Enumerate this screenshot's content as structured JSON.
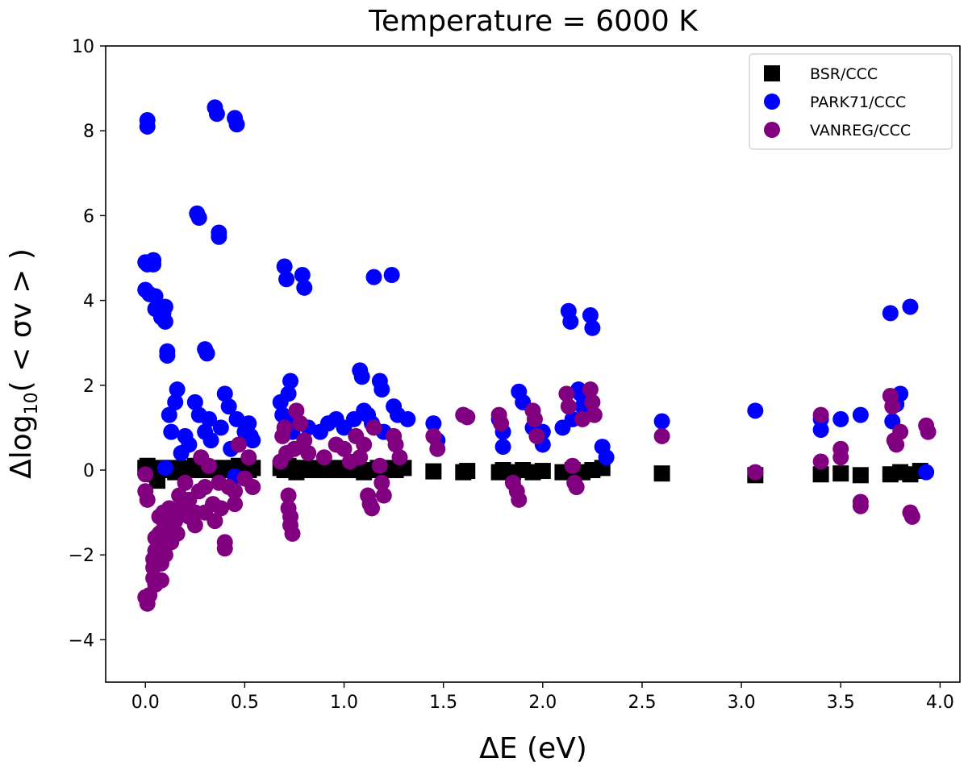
{
  "chart_data": {
    "type": "scatter",
    "title": "Temperature = 6000 K",
    "xlabel": "ΔE (eV)",
    "ylabel_prefix": "Δlog",
    "ylabel_sub": "10",
    "ylabel_suffix": "( < σv > )",
    "xlim": [
      -0.2,
      4.1
    ],
    "ylim": [
      -5,
      10
    ],
    "xticks": [
      0.0,
      0.5,
      1.0,
      1.5,
      2.0,
      2.5,
      3.0,
      3.5,
      4.0
    ],
    "xtick_labels": [
      "0.0",
      "0.5",
      "1.0",
      "1.5",
      "2.0",
      "2.5",
      "3.0",
      "3.5",
      "4.0"
    ],
    "yticks": [
      -4,
      -2,
      0,
      2,
      4,
      6,
      8,
      10
    ],
    "ytick_labels": [
      "−4",
      "−2",
      "0",
      "2",
      "4",
      "6",
      "8",
      "10"
    ],
    "legend_position": "top-right",
    "series": [
      {
        "name": "BSR/CCC",
        "marker": "square",
        "color": "#000000",
        "points": [
          [
            0.0,
            0.05
          ],
          [
            0.01,
            0.1
          ],
          [
            0.02,
            -0.05
          ],
          [
            0.03,
            0.0
          ],
          [
            0.05,
            -0.1
          ],
          [
            0.06,
            -0.25
          ],
          [
            0.08,
            0.05
          ],
          [
            0.1,
            0.0
          ],
          [
            0.12,
            0.05
          ],
          [
            0.15,
            -0.05
          ],
          [
            0.18,
            0.0
          ],
          [
            0.2,
            0.05
          ],
          [
            0.22,
            0.0
          ],
          [
            0.25,
            0.1
          ],
          [
            0.27,
            0.0
          ],
          [
            0.3,
            0.05
          ],
          [
            0.32,
            0.0
          ],
          [
            0.35,
            0.05
          ],
          [
            0.37,
            0.0
          ],
          [
            0.4,
            0.05
          ],
          [
            0.42,
            0.0
          ],
          [
            0.45,
            0.05
          ],
          [
            0.47,
            0.1
          ],
          [
            0.5,
            0.05
          ],
          [
            0.52,
            0.0
          ],
          [
            0.54,
            0.05
          ],
          [
            0.68,
            0.05
          ],
          [
            0.7,
            0.0
          ],
          [
            0.72,
            0.1
          ],
          [
            0.74,
            0.05
          ],
          [
            0.76,
            -0.05
          ],
          [
            0.78,
            0.0
          ],
          [
            0.8,
            0.05
          ],
          [
            0.85,
            0.0
          ],
          [
            0.88,
            0.05
          ],
          [
            0.92,
            0.0
          ],
          [
            0.96,
            0.05
          ],
          [
            1.0,
            0.0
          ],
          [
            1.04,
            0.05
          ],
          [
            1.07,
            0.0
          ],
          [
            1.1,
            -0.05
          ],
          [
            1.14,
            0.0
          ],
          [
            1.17,
            0.05
          ],
          [
            1.2,
            0.0
          ],
          [
            1.23,
            0.05
          ],
          [
            1.26,
            0.0
          ],
          [
            1.3,
            0.05
          ],
          [
            1.45,
            -0.03
          ],
          [
            1.6,
            -0.05
          ],
          [
            1.62,
            -0.02
          ],
          [
            1.78,
            -0.05
          ],
          [
            1.8,
            0.0
          ],
          [
            1.85,
            -0.05
          ],
          [
            1.9,
            0.0
          ],
          [
            1.95,
            -0.05
          ],
          [
            2.0,
            -0.02
          ],
          [
            2.1,
            -0.05
          ],
          [
            2.15,
            0.0
          ],
          [
            2.2,
            -0.05
          ],
          [
            2.25,
            0.0
          ],
          [
            2.3,
            0.05
          ],
          [
            2.6,
            -0.08
          ],
          [
            3.07,
            -0.12
          ],
          [
            3.4,
            -0.1
          ],
          [
            3.5,
            -0.08
          ],
          [
            3.6,
            -0.12
          ],
          [
            3.75,
            -0.1
          ],
          [
            3.8,
            -0.05
          ],
          [
            3.85,
            -0.1
          ],
          [
            3.9,
            -0.02
          ]
        ]
      },
      {
        "name": "PARK71/CCC",
        "marker": "circle",
        "color": "#0000ff",
        "points": [
          [
            0.01,
            8.25
          ],
          [
            0.01,
            8.1
          ],
          [
            0.0,
            4.9
          ],
          [
            0.01,
            4.85
          ],
          [
            0.0,
            4.25
          ],
          [
            0.02,
            4.15
          ],
          [
            0.04,
            4.95
          ],
          [
            0.04,
            4.85
          ],
          [
            0.05,
            4.1
          ],
          [
            0.05,
            3.8
          ],
          [
            0.08,
            3.6
          ],
          [
            0.09,
            3.7
          ],
          [
            0.1,
            3.85
          ],
          [
            0.1,
            3.5
          ],
          [
            0.11,
            2.8
          ],
          [
            0.11,
            2.7
          ],
          [
            0.12,
            1.3
          ],
          [
            0.13,
            0.9
          ],
          [
            0.15,
            1.6
          ],
          [
            0.16,
            1.9
          ],
          [
            0.18,
            0.4
          ],
          [
            0.2,
            0.8
          ],
          [
            0.22,
            0.6
          ],
          [
            0.25,
            1.6
          ],
          [
            0.27,
            1.3
          ],
          [
            0.26,
            6.05
          ],
          [
            0.27,
            5.95
          ],
          [
            0.3,
            2.85
          ],
          [
            0.31,
            2.75
          ],
          [
            0.3,
            0.9
          ],
          [
            0.33,
            0.7
          ],
          [
            0.32,
            1.2
          ],
          [
            0.35,
            8.55
          ],
          [
            0.36,
            8.4
          ],
          [
            0.37,
            5.6
          ],
          [
            0.37,
            5.5
          ],
          [
            0.38,
            1.0
          ],
          [
            0.4,
            1.8
          ],
          [
            0.42,
            1.5
          ],
          [
            0.43,
            0.5
          ],
          [
            0.45,
            8.3
          ],
          [
            0.46,
            8.15
          ],
          [
            0.46,
            1.2
          ],
          [
            0.5,
            0.9
          ],
          [
            0.52,
            1.1
          ],
          [
            0.53,
            0.8
          ],
          [
            0.54,
            0.7
          ],
          [
            0.68,
            1.6
          ],
          [
            0.69,
            1.3
          ],
          [
            0.7,
            4.8
          ],
          [
            0.71,
            4.5
          ],
          [
            0.72,
            1.8
          ],
          [
            0.73,
            2.1
          ],
          [
            0.74,
            0.9
          ],
          [
            0.75,
            1.2
          ],
          [
            0.79,
            4.6
          ],
          [
            0.8,
            4.3
          ],
          [
            0.82,
            1.0
          ],
          [
            0.88,
            0.9
          ],
          [
            0.92,
            1.1
          ],
          [
            0.96,
            1.2
          ],
          [
            1.0,
            1.0
          ],
          [
            1.05,
            1.2
          ],
          [
            1.08,
            2.35
          ],
          [
            1.09,
            2.2
          ],
          [
            1.1,
            1.4
          ],
          [
            1.12,
            1.3
          ],
          [
            1.14,
            1.1
          ],
          [
            1.15,
            4.55
          ],
          [
            1.18,
            2.1
          ],
          [
            1.19,
            1.9
          ],
          [
            1.2,
            0.9
          ],
          [
            1.24,
            4.6
          ],
          [
            1.25,
            1.5
          ],
          [
            1.27,
            1.3
          ],
          [
            1.32,
            1.2
          ],
          [
            1.45,
            1.1
          ],
          [
            1.47,
            0.7
          ],
          [
            1.6,
            1.3
          ],
          [
            1.62,
            1.25
          ],
          [
            1.78,
            1.2
          ],
          [
            1.8,
            0.9
          ],
          [
            1.8,
            0.55
          ],
          [
            1.88,
            1.85
          ],
          [
            1.9,
            1.6
          ],
          [
            1.95,
            1.0
          ],
          [
            2.0,
            0.9
          ],
          [
            2.0,
            0.6
          ],
          [
            2.1,
            1.0
          ],
          [
            2.13,
            3.75
          ],
          [
            2.14,
            3.5
          ],
          [
            2.15,
            1.2
          ],
          [
            2.18,
            1.9
          ],
          [
            2.19,
            1.8
          ],
          [
            2.2,
            1.5
          ],
          [
            2.24,
            3.65
          ],
          [
            2.25,
            3.35
          ],
          [
            2.3,
            0.55
          ],
          [
            2.32,
            0.3
          ],
          [
            2.6,
            1.15
          ],
          [
            3.07,
            1.4
          ],
          [
            3.4,
            1.2
          ],
          [
            3.4,
            0.95
          ],
          [
            3.5,
            1.2
          ],
          [
            3.6,
            1.3
          ],
          [
            3.75,
            3.7
          ],
          [
            3.76,
            1.15
          ],
          [
            3.78,
            1.55
          ],
          [
            3.8,
            1.8
          ],
          [
            3.85,
            3.85
          ],
          [
            3.93,
            -0.05
          ],
          [
            0.1,
            0.05
          ],
          [
            0.45,
            -0.15
          ]
        ]
      },
      {
        "name": "VANREG/CCC",
        "marker": "circle",
        "color": "#800080",
        "points": [
          [
            0.0,
            -0.1
          ],
          [
            0.0,
            -0.5
          ],
          [
            0.01,
            -0.7
          ],
          [
            0.0,
            -3.0
          ],
          [
            0.01,
            -3.15
          ],
          [
            0.02,
            -2.95
          ],
          [
            0.04,
            -2.1
          ],
          [
            0.04,
            -2.3
          ],
          [
            0.04,
            -2.55
          ],
          [
            0.05,
            -1.6
          ],
          [
            0.05,
            -1.9
          ],
          [
            0.05,
            -2.7
          ],
          [
            0.07,
            -1.1
          ],
          [
            0.07,
            -1.5
          ],
          [
            0.07,
            -1.9
          ],
          [
            0.08,
            -2.2
          ],
          [
            0.08,
            -2.6
          ],
          [
            0.09,
            -1.0
          ],
          [
            0.09,
            -1.4
          ],
          [
            0.1,
            -1.8
          ],
          [
            0.1,
            -2.0
          ],
          [
            0.12,
            -0.9
          ],
          [
            0.12,
            -1.2
          ],
          [
            0.13,
            -1.7
          ],
          [
            0.15,
            -1.2
          ],
          [
            0.16,
            -1.5
          ],
          [
            0.17,
            -0.6
          ],
          [
            0.18,
            -0.9
          ],
          [
            0.2,
            -0.3
          ],
          [
            0.22,
            -0.7
          ],
          [
            0.22,
            -1.1
          ],
          [
            0.25,
            -1.0
          ],
          [
            0.25,
            -1.3
          ],
          [
            0.27,
            -0.5
          ],
          [
            0.28,
            0.3
          ],
          [
            0.3,
            -0.4
          ],
          [
            0.3,
            -1.0
          ],
          [
            0.32,
            0.1
          ],
          [
            0.34,
            -0.8
          ],
          [
            0.35,
            -1.2
          ],
          [
            0.37,
            -0.3
          ],
          [
            0.38,
            -0.9
          ],
          [
            0.4,
            -1.7
          ],
          [
            0.4,
            -1.85
          ],
          [
            0.42,
            -0.4
          ],
          [
            0.45,
            -0.5
          ],
          [
            0.45,
            -0.8
          ],
          [
            0.47,
            0.6
          ],
          [
            0.5,
            -0.2
          ],
          [
            0.52,
            0.3
          ],
          [
            0.54,
            -0.4
          ],
          [
            0.68,
            0.2
          ],
          [
            0.69,
            0.8
          ],
          [
            0.7,
            1.0
          ],
          [
            0.71,
            0.4
          ],
          [
            0.72,
            -0.6
          ],
          [
            0.72,
            -0.9
          ],
          [
            0.73,
            -1.1
          ],
          [
            0.73,
            -1.3
          ],
          [
            0.74,
            -1.5
          ],
          [
            0.75,
            0.5
          ],
          [
            0.76,
            1.4
          ],
          [
            0.78,
            1.1
          ],
          [
            0.8,
            0.7
          ],
          [
            0.82,
            0.4
          ],
          [
            0.9,
            0.3
          ],
          [
            0.96,
            0.6
          ],
          [
            1.0,
            0.5
          ],
          [
            1.03,
            0.2
          ],
          [
            1.06,
            0.8
          ],
          [
            1.08,
            0.3
          ],
          [
            1.1,
            0.6
          ],
          [
            1.12,
            -0.6
          ],
          [
            1.13,
            -0.8
          ],
          [
            1.14,
            -0.9
          ],
          [
            1.15,
            1.0
          ],
          [
            1.18,
            0.1
          ],
          [
            1.19,
            -0.3
          ],
          [
            1.2,
            -0.6
          ],
          [
            1.25,
            0.8
          ],
          [
            1.26,
            0.6
          ],
          [
            1.28,
            0.3
          ],
          [
            1.45,
            0.8
          ],
          [
            1.47,
            0.5
          ],
          [
            1.6,
            1.3
          ],
          [
            1.62,
            1.25
          ],
          [
            1.78,
            1.3
          ],
          [
            1.79,
            1.1
          ],
          [
            1.85,
            -0.3
          ],
          [
            1.87,
            -0.5
          ],
          [
            1.88,
            -0.7
          ],
          [
            1.95,
            1.4
          ],
          [
            1.96,
            1.2
          ],
          [
            1.97,
            0.8
          ],
          [
            2.12,
            1.8
          ],
          [
            2.13,
            1.5
          ],
          [
            2.15,
            0.1
          ],
          [
            2.16,
            -0.3
          ],
          [
            2.17,
            -0.4
          ],
          [
            2.2,
            1.2
          ],
          [
            2.24,
            1.9
          ],
          [
            2.25,
            1.6
          ],
          [
            2.26,
            1.3
          ],
          [
            2.6,
            0.8
          ],
          [
            3.07,
            -0.05
          ],
          [
            3.4,
            1.3
          ],
          [
            3.4,
            0.2
          ],
          [
            3.5,
            0.5
          ],
          [
            3.5,
            0.3
          ],
          [
            3.6,
            -0.75
          ],
          [
            3.6,
            -0.85
          ],
          [
            3.75,
            1.75
          ],
          [
            3.76,
            1.5
          ],
          [
            3.77,
            0.7
          ],
          [
            3.78,
            0.6
          ],
          [
            3.8,
            0.9
          ],
          [
            3.85,
            -1.0
          ],
          [
            3.86,
            -1.1
          ],
          [
            3.93,
            1.05
          ],
          [
            3.94,
            0.9
          ]
        ]
      }
    ]
  }
}
